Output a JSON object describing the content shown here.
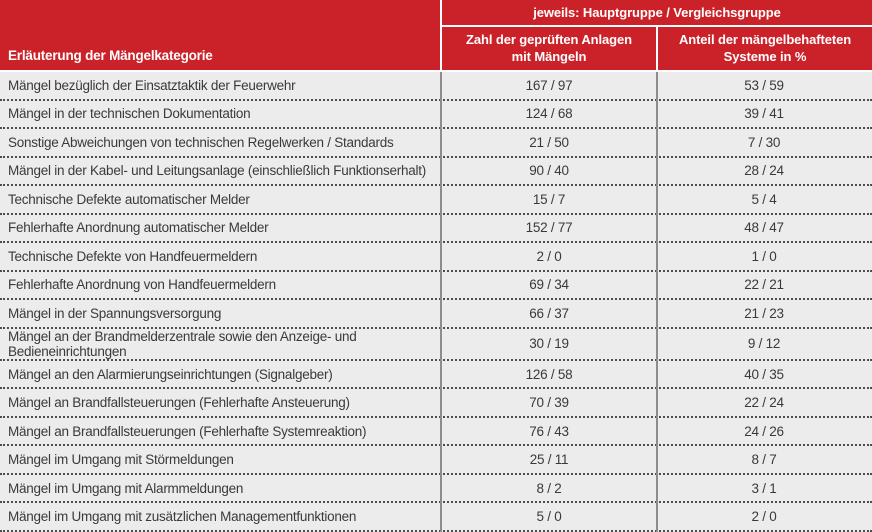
{
  "colors": {
    "header_red": "#cb2229",
    "header_text": "#ffffff",
    "row_background": "#ececec",
    "row_text": "#3a3a3a",
    "column_divider": "#8c8c8c",
    "dotted_separator": "#4d4d4d"
  },
  "header": {
    "group_label": "jeweils: Hauptgruppe / Vergleichsgruppe",
    "category_label": "Erläuterung der Mängelkategorie",
    "count_label": "Zahl der geprüften Anlagen\nmit Mängeln",
    "percent_label": "Anteil der mängelbehafteten\nSysteme in %"
  },
  "chart_data": {
    "type": "table",
    "title": "",
    "group_header": "jeweils: Hauptgruppe / Vergleichsgruppe",
    "columns": [
      "Erläuterung der Mängelkategorie",
      "Zahl der geprüften Anlagen mit Mängeln",
      "Anteil der mängelbehafteten Systeme in %"
    ],
    "rows": [
      {
        "category": "Mängel bezüglich der Einsatztaktik der Feuerwehr",
        "anlagen": "167 / 97",
        "anteil": "53 / 59"
      },
      {
        "category": "Mängel in der technischen Dokumentation",
        "anlagen": "124 / 68",
        "anteil": "39 / 41"
      },
      {
        "category": "Sonstige Abweichungen von technischen Regelwerken / Standards",
        "anlagen": "21 / 50",
        "anteil": "7 / 30"
      },
      {
        "category": "Mängel in der Kabel- und Leitungsanlage (einschließlich Funktionserhalt)",
        "anlagen": "90 / 40",
        "anteil": "28 / 24"
      },
      {
        "category": "Technische Defekte automatischer Melder",
        "anlagen": "15 / 7",
        "anteil": "5 / 4"
      },
      {
        "category": "Fehlerhafte Anordnung automatischer Melder",
        "anlagen": "152 / 77",
        "anteil": "48 / 47"
      },
      {
        "category": "Technische Defekte von Handfeuermeldern",
        "anlagen": "2 / 0",
        "anteil": "1 / 0"
      },
      {
        "category": "Fehlerhafte Anordnung von Handfeuermeldern",
        "anlagen": "69 / 34",
        "anteil": "22 / 21"
      },
      {
        "category": "Mängel in der Spannungsversorgung",
        "anlagen": "66 / 37",
        "anteil": "21 / 23"
      },
      {
        "category": "Mängel an der Brandmelderzentrale sowie den Anzeige- und Bedieneinrichtungen",
        "anlagen": "30 / 19",
        "anteil": "9 / 12"
      },
      {
        "category": "Mängel an den Alarmierungseinrichtungen (Signalgeber)",
        "anlagen": "126 / 58",
        "anteil": "40 / 35"
      },
      {
        "category": "Mängel an Brandfallsteuerungen (Fehlerhafte Ansteuerung)",
        "anlagen": "70 / 39",
        "anteil": "22 / 24"
      },
      {
        "category": "Mängel an Brandfallsteuerungen (Fehlerhafte Systemreaktion)",
        "anlagen": "76 / 43",
        "anteil": "24 / 26"
      },
      {
        "category": "Mängel im Umgang mit Störmeldungen",
        "anlagen": "25 / 11",
        "anteil": "8 / 7"
      },
      {
        "category": "Mängel im Umgang mit Alarmmeldungen",
        "anlagen": "8 / 2",
        "anteil": "3 / 1"
      },
      {
        "category": "Mängel im Umgang mit zusätzlichen Managementfunktionen",
        "anlagen": "5 / 0",
        "anteil": "2 / 0"
      }
    ]
  }
}
